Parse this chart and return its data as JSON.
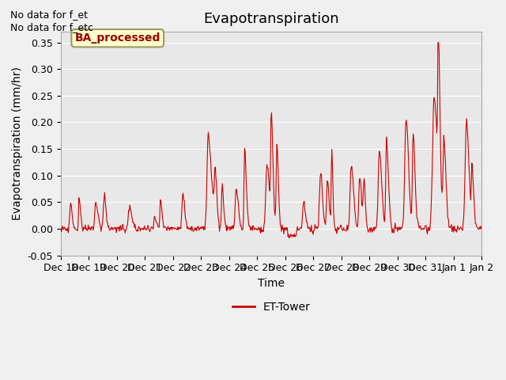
{
  "title": "Evapotranspiration",
  "xlabel": "Time",
  "ylabel": "Evapotranspiration (mm/hr)",
  "ylim": [
    -0.05,
    0.37
  ],
  "yticks": [
    -0.05,
    0.0,
    0.05,
    0.1,
    0.15,
    0.2,
    0.25,
    0.3,
    0.35
  ],
  "line_color": "#cc0000",
  "line_label": "ET-Tower",
  "no_data_text1": "No data for f_et",
  "no_data_text2": "No data for f_etc",
  "box_label": "BA_processed",
  "box_facecolor": "#ffffcc",
  "box_edgecolor": "#999966",
  "box_text_color": "#990000",
  "plot_bg_color": "#e8e8e8",
  "fig_bg_color": "#f0f0f0",
  "tick_dates": [
    "Dec 18",
    "Dec 19",
    "Dec 20",
    "Dec 21",
    "Dec 22",
    "Dec 23",
    "Dec 24",
    "Dec 25",
    "Dec 26",
    "Dec 27",
    "Dec 28",
    "Dec 29",
    "Dec 30",
    "Dec 31",
    "Jan 1",
    "Jan 2"
  ],
  "title_fontsize": 13,
  "label_fontsize": 10,
  "tick_fontsize": 9
}
